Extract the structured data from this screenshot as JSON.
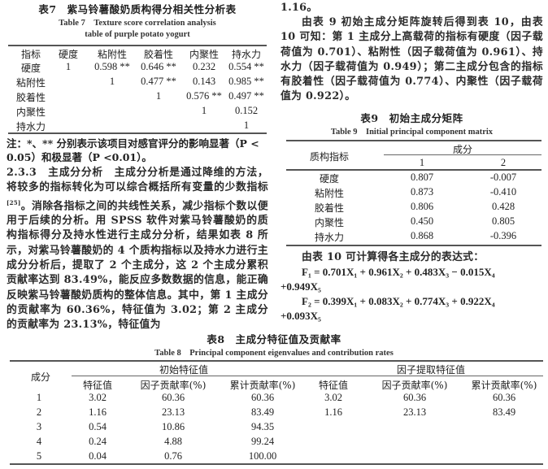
{
  "table7": {
    "title_cn": "表7　紫马铃薯酸奶质构得分相关性分析表",
    "title_en_1": "Table 7　Texture score correlation analysis",
    "title_en_2": "table of purple potato yogurt",
    "headers": [
      "指标",
      "硬度",
      "粘附性",
      "胶着性",
      "内聚性",
      "持水力"
    ],
    "rows": [
      [
        "硬度",
        "1",
        "0.598 **",
        "0.646 **",
        "0.232",
        "0.554 **"
      ],
      [
        "粘附性",
        "",
        "1",
        "0.477 **",
        "0.143",
        "0.985 **"
      ],
      [
        "胶着性",
        "",
        "",
        "1",
        "0.576 **",
        "0.497 **"
      ],
      [
        "内聚性",
        "",
        "",
        "",
        "1",
        "0.152"
      ],
      [
        "持水力",
        "",
        "",
        "",
        "",
        "1"
      ]
    ],
    "note_1": "注：*、** 分别表示该项目对感官评分的影响显著（P <",
    "note_2": "0.05）和极显著（P <0.01）。"
  },
  "section_233": {
    "number": "2.3.3",
    "heading": "主成分分析",
    "text_1": "主成分分析是通过降维的方法，将较多的指标转化为可以综合概括所有变量的少数指标",
    "citation": "[25]",
    "text_2": "。消除各指标之间的共线性关系，减少指标个数以便用于后续的分析。用 SPSS 软件对紫马铃薯酸奶的质构指标得分及持水性进行主成分分析，结果如表 8 所示，对紫马铃薯酸奶的 4 个质构指标以及持水力进行主成分分析后，提取了 2 个主成分，这 2 个主成分累积贡献率达到 83.49%，能反应多数数据的信息，能正确反映紫马铃薯酸奶质构的整体信息。其中，第 1 主成分的贡献率为 60.36%，特征值为 3.02；第 2 主成分的贡献率为 23.13%，特征值为",
    "continuation": "1.16。"
  },
  "paragraph_table10": "由表 9 初始主成分矩阵旋转后得到表 10，由表 10 可知：第 1 主成分上高载荷的指标有硬度（因子载荷值为 0.701）、粘附性（因子载荷值为 0.961）、持水力（因子载荷值为 0.949）；第二主成分包含的指标有胶着性（因子载荷值为 0.774）、内聚性（因子载荷值为 0.922）。",
  "table9": {
    "title_cn": "表9　初始主成分矩阵",
    "title_en": "Table 9　Initial principal component matrix",
    "row_header": "质构指标",
    "group_header": "成分",
    "sub_headers": [
      "1",
      "2"
    ],
    "rows": [
      [
        "硬度",
        "0.807",
        "-0.007"
      ],
      [
        "粘附性",
        "0.873",
        "-0.410"
      ],
      [
        "胶着性",
        "0.806",
        "0.428"
      ],
      [
        "内聚性",
        "0.450",
        "0.805"
      ],
      [
        "持水力",
        "0.868",
        "-0.396"
      ]
    ]
  },
  "formulas": {
    "intro": "由表 10 可计算得各主成分的表达式：",
    "f1_line1": "F₁ = 0.701X₁ + 0.961X₂ + 0.483X₃ − 0.015X₄",
    "f1_line2": "+0.949X₅",
    "f2_line1": "F₂ = 0.399X₁ + 0.083X₂ + 0.774X₃ + 0.922X₄",
    "f2_line2": "+0.093X₅"
  },
  "table8": {
    "title_cn": "表8　主成分特征值及贡献率",
    "title_en": "Table 8　Principal component eigenvalues and contribution rates",
    "row_header": "成分",
    "group_headers": [
      "初始特征值",
      "因子提取特征值"
    ],
    "sub_headers": [
      "特征值",
      "因子贡献率(%)",
      "累计贡献率(%)",
      "特征值",
      "因子贡献率(%)",
      "累计贡献率(%)"
    ],
    "rows": [
      [
        "1",
        "3.02",
        "60.36",
        "60.36",
        "3.02",
        "60.36",
        "60.36"
      ],
      [
        "2",
        "1.16",
        "23.13",
        "83.49",
        "1.16",
        "23.13",
        "83.49"
      ],
      [
        "3",
        "0.54",
        "10.86",
        "94.35",
        "",
        "",
        ""
      ],
      [
        "4",
        "0.24",
        "4.88",
        "99.24",
        "",
        "",
        ""
      ],
      [
        "5",
        "0.04",
        "0.76",
        "100.00",
        "",
        "",
        ""
      ]
    ]
  }
}
